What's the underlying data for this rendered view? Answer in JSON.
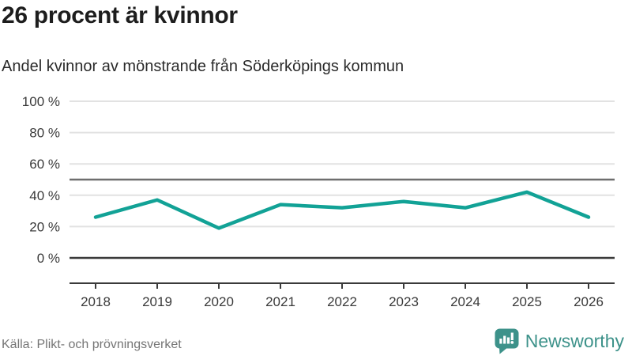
{
  "header": {
    "title": "26 procent är kvinnor",
    "subtitle": "Andel kvinnor av mönstrande från Söderköpings kommun"
  },
  "footer": {
    "source": "Källa: Plikt- och prövningsverket",
    "brand": "Newsworthy"
  },
  "chart_data": {
    "type": "line",
    "title": "26 procent är kvinnor",
    "subtitle": "Andel kvinnor av mönstrande från Söderköpings kommun",
    "categories": [
      "2018",
      "2019",
      "2020",
      "2021",
      "2022",
      "2023",
      "2024",
      "2025",
      "2026"
    ],
    "series": [
      {
        "name": "Andel kvinnor av mönstrande",
        "values": [
          26,
          37,
          19,
          34,
          32,
          36,
          32,
          42,
          26
        ]
      }
    ],
    "xlabel": "",
    "ylabel": "",
    "ylim": [
      0,
      100
    ],
    "yticks": [
      0,
      20,
      40,
      60,
      80,
      100
    ],
    "ytick_labels": [
      "0 %",
      "20 %",
      "40 %",
      "60 %",
      "80 %",
      "100 %"
    ],
    "reference_line": 50,
    "grid": true,
    "legend": false,
    "colors": {
      "line": "#12a296",
      "grid": "#e2e2e2",
      "axis": "#3a3a3a",
      "reference": "#6e6e6e",
      "brand": "#3d928a",
      "source_text": "#757575"
    }
  }
}
